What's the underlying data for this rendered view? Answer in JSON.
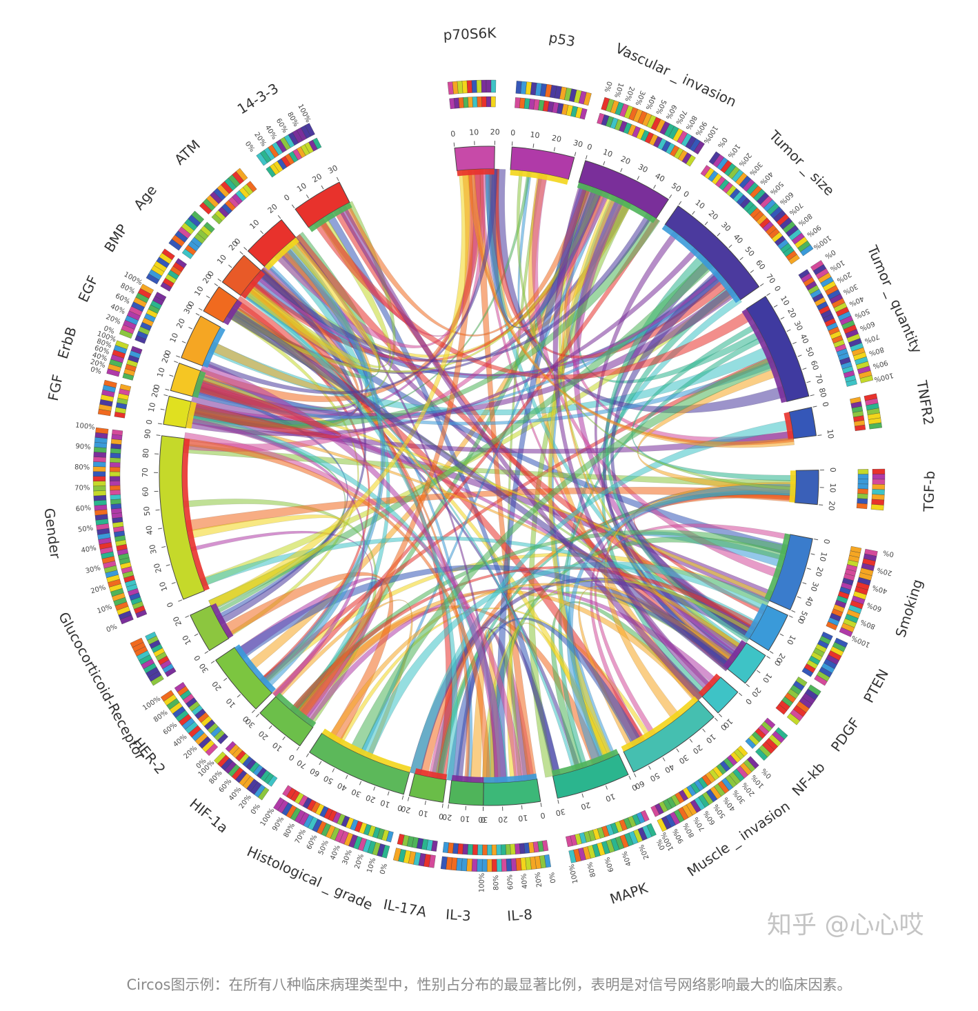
{
  "segments": [
    {
      "label": "p70S6K",
      "kind": "protein",
      "max": 20,
      "ticks": [
        0,
        10,
        20
      ]
    },
    {
      "label": "p53",
      "kind": "protein",
      "max": 30,
      "ticks": [
        0,
        10,
        20,
        30
      ]
    },
    {
      "label": "Vascular _ invasion",
      "kind": "clinical",
      "max": 50,
      "ticks": [
        0,
        10,
        20,
        30,
        40,
        50
      ],
      "pct_ticks": [
        "0%",
        "10%",
        "20%",
        "30%",
        "40%",
        "50%",
        "60%",
        "70%",
        "80%",
        "90%",
        "100%"
      ]
    },
    {
      "label": "Tumor _ size",
      "kind": "clinical",
      "max": 70,
      "ticks": [
        0,
        10,
        20,
        30,
        40,
        50,
        60,
        70
      ],
      "pct_ticks": [
        "0%",
        "10%",
        "20%",
        "30%",
        "40%",
        "50%",
        "60%",
        "70%",
        "80%",
        "90%",
        "100%"
      ]
    },
    {
      "label": "Tumor _ quantity",
      "kind": "clinical",
      "max": 80,
      "ticks": [
        0,
        10,
        20,
        30,
        40,
        50,
        60,
        70,
        80
      ],
      "pct_ticks": [
        "0%",
        "10%",
        "20%",
        "30%",
        "40%",
        "50%",
        "60%",
        "70%",
        "80%",
        "90%",
        "100%"
      ]
    },
    {
      "label": "TNFR2",
      "kind": "protein",
      "max": 10,
      "ticks": [
        0,
        10
      ]
    },
    {
      "label": "TGF-b",
      "kind": "protein",
      "max": 20,
      "ticks": [
        0,
        10,
        20
      ]
    },
    {
      "label": "Smoking",
      "kind": "clinical",
      "max": 50,
      "ticks": [
        0,
        10,
        20,
        30,
        40,
        50
      ],
      "pct_ticks": [
        "0%",
        "20%",
        "40%",
        "60%",
        "80%",
        "100%"
      ]
    },
    {
      "label": "PTEN",
      "kind": "protein",
      "max": 20,
      "ticks": [
        0,
        10,
        20
      ]
    },
    {
      "label": "PDGF",
      "kind": "protein",
      "max": 20,
      "ticks": [
        0,
        10,
        20
      ]
    },
    {
      "label": "NF-kb",
      "kind": "protein",
      "max": 10,
      "ticks": [
        0,
        10
      ]
    },
    {
      "label": "Muscle _ invasion",
      "kind": "clinical",
      "max": 60,
      "ticks": [
        0,
        10,
        20,
        30,
        40,
        50,
        60
      ],
      "pct_ticks": [
        "0%",
        "10%",
        "20%",
        "30%",
        "40%",
        "50%",
        "60%",
        "70%",
        "80%",
        "90%",
        "100%"
      ]
    },
    {
      "label": "MAPK",
      "kind": "protein",
      "max": 30,
      "ticks": [
        0,
        10,
        20,
        30
      ],
      "pct_ticks": [
        "0%",
        "20%",
        "40%",
        "60%",
        "80%",
        "100%"
      ]
    },
    {
      "label": "IL-8",
      "kind": "protein",
      "max": 30,
      "ticks": [
        0,
        10,
        20,
        30
      ],
      "pct_ticks": [
        "0%",
        "20%",
        "40%",
        "60%",
        "80%",
        "100%"
      ]
    },
    {
      "label": "IL-3",
      "kind": "protein",
      "max": 20,
      "ticks": [
        0,
        10,
        20
      ]
    },
    {
      "label": "IL-17A",
      "kind": "protein",
      "max": 20,
      "ticks": [
        0,
        10,
        20
      ]
    },
    {
      "label": "Histological _ grade",
      "kind": "clinical",
      "max": 70,
      "ticks": [
        0,
        10,
        20,
        30,
        40,
        50,
        60,
        70
      ],
      "pct_ticks": [
        "0%",
        "10%",
        "20%",
        "30%",
        "40%",
        "50%",
        "60%",
        "70%",
        "80%",
        "90%",
        "100%"
      ]
    },
    {
      "label": "HIF-1a",
      "kind": "protein",
      "max": 30,
      "ticks": [
        0,
        10,
        20,
        30
      ],
      "pct_ticks": [
        "0%",
        "20%",
        "40%",
        "60%",
        "80%",
        "100%"
      ]
    },
    {
      "label": "HER-2",
      "kind": "protein",
      "max": 30,
      "ticks": [
        0,
        10,
        20,
        30
      ],
      "pct_ticks": [
        "0%",
        "20%",
        "40%",
        "60%",
        "80%",
        "100%"
      ]
    },
    {
      "label": "Glucocorticoid-Receptor",
      "kind": "protein",
      "max": 20,
      "ticks": [
        0,
        10,
        20
      ]
    },
    {
      "label": "Gender",
      "kind": "clinical",
      "max": 90,
      "ticks": [
        0,
        10,
        20,
        30,
        40,
        50,
        60,
        70,
        80,
        90
      ],
      "pct_ticks": [
        "0%",
        "10%",
        "20%",
        "30%",
        "40%",
        "50%",
        "60%",
        "70%",
        "80%",
        "90%",
        "100%"
      ]
    },
    {
      "label": "FGF",
      "kind": "protein",
      "max": 20,
      "ticks": [
        0,
        10,
        20
      ]
    },
    {
      "label": "ErbB",
      "kind": "protein",
      "max": 20,
      "ticks": [
        0,
        10,
        20
      ],
      "pct_ticks": [
        "0%",
        "20%",
        "40%",
        "60%",
        "80%",
        "100%"
      ]
    },
    {
      "label": "EGF",
      "kind": "protein",
      "max": 30,
      "ticks": [
        0,
        10,
        20,
        30
      ],
      "pct_ticks": [
        "0%",
        "20%",
        "40%",
        "60%",
        "80%",
        "100%"
      ]
    },
    {
      "label": "BMP",
      "kind": "protein",
      "max": 20,
      "ticks": [
        0,
        10,
        20
      ]
    },
    {
      "label": "Age",
      "kind": "protein",
      "max": 20,
      "ticks": [
        0,
        10,
        20
      ]
    },
    {
      "label": "ATM",
      "kind": "protein",
      "max": 20,
      "ticks": [
        0,
        10,
        20
      ]
    },
    {
      "label": "14-3-3",
      "kind": "protein",
      "max": 30,
      "ticks": [
        0,
        10,
        20,
        30
      ],
      "pct_ticks": [
        "0%",
        "20%",
        "40%",
        "60%",
        "80%",
        "100%"
      ]
    }
  ],
  "palette": [
    "#e8322c",
    "#f06a1f",
    "#f5a623",
    "#f3d51b",
    "#c5d92a",
    "#8cc63f",
    "#4fb45a",
    "#2bb58e",
    "#3ec3c6",
    "#3a9ad9",
    "#3557b8",
    "#4b3a9e",
    "#7a2f9a",
    "#b03aa8",
    "#d44a9a"
  ],
  "segment_colors": [
    "#c74aa8",
    "#b03aa8",
    "#7a2f9a",
    "#4b3a9e",
    "#3f3aa0",
    "#3557b8",
    "#3a60b8",
    "#3a7ccc",
    "#3a9ad9",
    "#3ec3c6",
    "#3ec3c6",
    "#45bfb0",
    "#2bb58e",
    "#3cb878",
    "#4fb45a",
    "#6abd48",
    "#5cb85a",
    "#6cbf4a",
    "#7cc540",
    "#8cc63f",
    "#c5d92a",
    "#e0e020",
    "#f5c623",
    "#f5a623",
    "#f06a1f",
    "#e85a28",
    "#e8322c",
    "#e8322c"
  ],
  "caption": "Circos图示例：在所有八种临床病理类型中，性别占分布的最显著比例，表明是对信号网络影响最大的临床因素。",
  "watermark": "知乎 @心心哎"
}
